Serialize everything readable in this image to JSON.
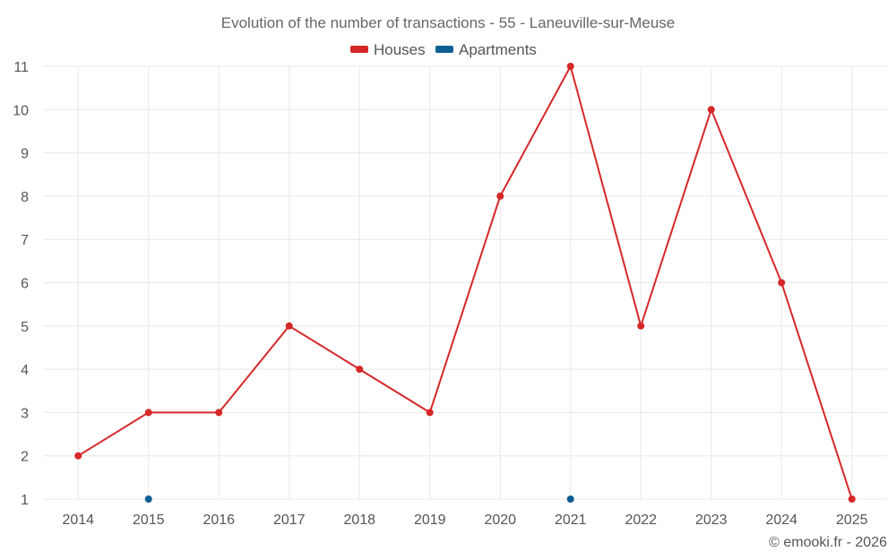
{
  "colors": {
    "houses": "#d62728",
    "apartments": "#0b5f93"
  },
  "credit": "© emooki.fr - 2026",
  "chart_data": {
    "type": "line",
    "title": "Evolution of the number of transactions - 55 - Laneuville-sur-Meuse",
    "categories": [
      "2014",
      "2015",
      "2016",
      "2017",
      "2018",
      "2019",
      "2020",
      "2021",
      "2022",
      "2023",
      "2024",
      "2025"
    ],
    "y_ticks": [
      "1",
      "2",
      "3",
      "4",
      "5",
      "6",
      "7",
      "8",
      "9",
      "10",
      "11"
    ],
    "ylim": [
      1,
      11
    ],
    "legend_position": "top-center",
    "series": [
      {
        "name": "Houses",
        "color": "#d62728",
        "values": [
          2,
          3,
          3,
          5,
          4,
          3,
          8,
          11,
          5,
          10,
          6,
          1
        ]
      },
      {
        "name": "Apartments",
        "color": "#0b5f93",
        "values": [
          null,
          1,
          null,
          null,
          null,
          null,
          null,
          1,
          null,
          null,
          null,
          null
        ]
      }
    ]
  }
}
